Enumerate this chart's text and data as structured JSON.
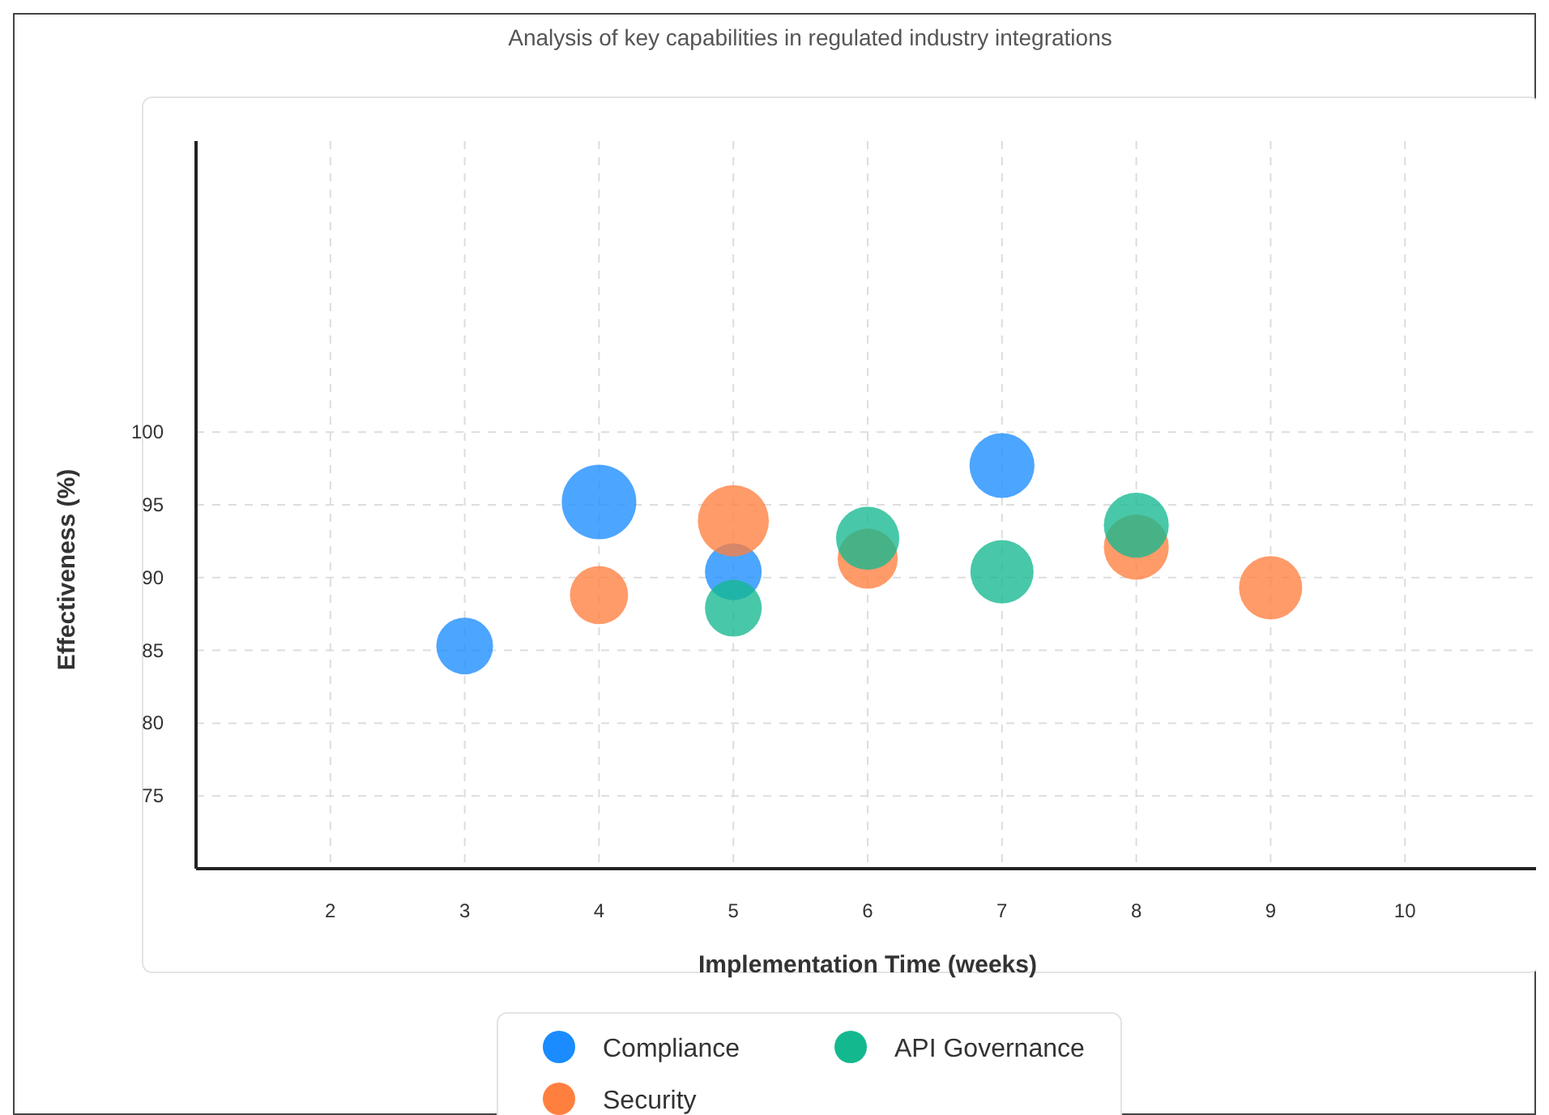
{
  "chart_data": {
    "type": "bubble",
    "title": "Analysis of key capabilities in regulated industry integrations",
    "xlabel": "Implementation Time (weeks)",
    "ylabel": "Effectiveness (%)",
    "xlim": [
      1,
      11
    ],
    "xticks": [
      2,
      3,
      4,
      5,
      6,
      7,
      8,
      9,
      10
    ],
    "ylim": [
      70,
      120
    ],
    "yticks": [
      75,
      80,
      85,
      90,
      95,
      100
    ],
    "grid": true,
    "legend": "bottom",
    "series": [
      {
        "name": "Compliance",
        "color": "#1a8cff",
        "x": [
          3,
          4,
          5,
          7
        ],
        "values": [
          85.3,
          95.2,
          90.4,
          97.7
        ],
        "sizes": [
          0.58,
          1,
          0.58,
          0.76
        ]
      },
      {
        "name": "Security",
        "color": "#ff7f3f",
        "x": [
          4,
          5,
          6,
          8,
          9
        ],
        "values": [
          88.8,
          93.9,
          91.3,
          92.1,
          89.3
        ],
        "sizes": [
          0.61,
          0.91,
          0.65,
          0.76,
          0.72
        ]
      },
      {
        "name": "API Governance",
        "color": "#14b88f",
        "x": [
          5,
          6,
          7,
          8
        ],
        "values": [
          87.9,
          92.7,
          90.4,
          93.6
        ],
        "sizes": [
          0.58,
          0.72,
          0.72,
          0.76
        ]
      }
    ]
  }
}
